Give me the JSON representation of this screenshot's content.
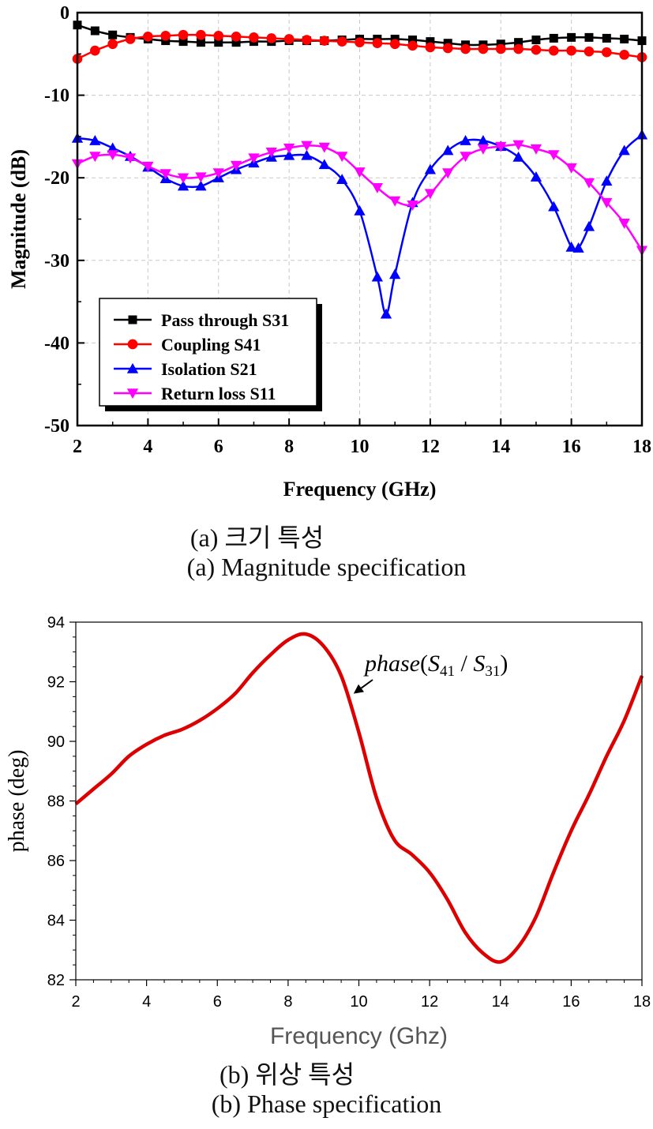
{
  "chart_data": [
    {
      "type": "line",
      "xlabel": "Frequency (GHz)",
      "ylabel": "Magnitude (dB)",
      "xlim": [
        2,
        18
      ],
      "ylim": [
        -50,
        0
      ],
      "xticks": [
        2,
        4,
        6,
        8,
        10,
        12,
        14,
        16,
        18
      ],
      "yticks": [
        0,
        -10,
        -20,
        -30,
        -40,
        -50
      ],
      "grid": true,
      "legend_position": "bottom-left",
      "series": [
        {
          "name": "Pass through S31",
          "color": "#000000",
          "marker": "square",
          "x": [
            2,
            2.5,
            3,
            3.5,
            4,
            4.5,
            5,
            5.5,
            6,
            6.5,
            7,
            7.5,
            8,
            8.5,
            9,
            9.5,
            10,
            10.5,
            11,
            11.5,
            12,
            12.5,
            13,
            13.5,
            14,
            14.5,
            15,
            15.5,
            16,
            16.5,
            17,
            17.5,
            18
          ],
          "y": [
            -1.5,
            -2.2,
            -2.7,
            -3.0,
            -3.2,
            -3.4,
            -3.5,
            -3.6,
            -3.6,
            -3.6,
            -3.5,
            -3.5,
            -3.4,
            -3.4,
            -3.4,
            -3.3,
            -3.2,
            -3.2,
            -3.2,
            -3.3,
            -3.5,
            -3.7,
            -3.9,
            -3.9,
            -3.8,
            -3.6,
            -3.3,
            -3.1,
            -3.0,
            -3.0,
            -3.1,
            -3.2,
            -3.4
          ]
        },
        {
          "name": "Coupling S41",
          "color": "#ff0000",
          "marker": "circle",
          "x": [
            2,
            2.5,
            3,
            3.5,
            4,
            4.5,
            5,
            5.5,
            6,
            6.5,
            7,
            7.5,
            8,
            8.5,
            9,
            9.5,
            10,
            10.5,
            11,
            11.5,
            12,
            12.5,
            13,
            13.5,
            14,
            14.5,
            15,
            15.5,
            16,
            16.5,
            17,
            17.5,
            18
          ],
          "y": [
            -5.6,
            -4.6,
            -3.8,
            -3.2,
            -2.9,
            -2.8,
            -2.7,
            -2.7,
            -2.8,
            -2.9,
            -3.0,
            -3.1,
            -3.2,
            -3.3,
            -3.4,
            -3.5,
            -3.6,
            -3.7,
            -3.8,
            -4.0,
            -4.2,
            -4.3,
            -4.4,
            -4.4,
            -4.4,
            -4.4,
            -4.5,
            -4.6,
            -4.6,
            -4.7,
            -4.8,
            -5.1,
            -5.4
          ]
        },
        {
          "name": "Isolation S21",
          "color": "#0000ff",
          "marker": "triangle-up",
          "x": [
            2,
            2.5,
            3,
            3.5,
            4,
            4.5,
            5,
            5.5,
            6,
            6.5,
            7,
            7.5,
            8,
            8.5,
            9,
            9.5,
            10,
            10.5,
            10.75,
            11,
            11.5,
            12,
            12.5,
            13,
            13.5,
            14,
            14.5,
            15,
            15.5,
            16,
            16.2,
            16.5,
            17,
            17.5,
            18
          ],
          "y": [
            -15.2,
            -15.5,
            -16.4,
            -17.4,
            -18.7,
            -20.1,
            -21.0,
            -21.0,
            -20.0,
            -19.0,
            -18.2,
            -17.5,
            -17.3,
            -17.3,
            -18.4,
            -20.2,
            -24.0,
            -32.0,
            -36.5,
            -31.7,
            -23.0,
            -19.0,
            -16.7,
            -15.5,
            -15.5,
            -16.2,
            -17.5,
            -19.9,
            -23.5,
            -28.4,
            -28.5,
            -25.9,
            -20.4,
            -16.7,
            -14.8
          ]
        },
        {
          "name": "Return loss S11",
          "color": "#ff00ff",
          "marker": "triangle-down",
          "x": [
            2,
            2.5,
            3,
            3.5,
            4,
            4.5,
            5,
            5.5,
            6,
            6.5,
            7,
            7.5,
            8,
            8.5,
            9,
            9.5,
            10,
            10.5,
            11,
            11.5,
            12,
            12.5,
            13,
            13.5,
            14,
            14.5,
            15,
            15.5,
            16,
            16.5,
            17,
            17.5,
            18
          ],
          "y": [
            -18.3,
            -17.4,
            -17.2,
            -17.6,
            -18.6,
            -19.5,
            -20.0,
            -19.9,
            -19.4,
            -18.5,
            -17.6,
            -16.9,
            -16.4,
            -16.1,
            -16.3,
            -17.4,
            -19.3,
            -21.2,
            -22.8,
            -23.3,
            -21.9,
            -19.4,
            -17.4,
            -16.5,
            -16.2,
            -16.0,
            -16.5,
            -17.2,
            -18.8,
            -20.6,
            -23.0,
            -25.5,
            -28.8
          ]
        }
      ],
      "caption_ko": "(a)  크기  특성",
      "caption_en": "(a)  Magnitude  specification"
    },
    {
      "type": "line",
      "xlabel": "Frequency (Ghz)",
      "ylabel": "phase (deg)",
      "xlim": [
        2,
        18
      ],
      "ylim": [
        82,
        94
      ],
      "xticks": [
        2,
        4,
        6,
        8,
        10,
        12,
        14,
        16,
        18
      ],
      "yticks": [
        82,
        84,
        86,
        88,
        90,
        92,
        94
      ],
      "grid": false,
      "series": [
        {
          "color": "#dd0000",
          "x": [
            2,
            2.5,
            3,
            3.5,
            4,
            4.5,
            5,
            5.5,
            6,
            6.5,
            7,
            7.5,
            8,
            8.5,
            9,
            9.5,
            10,
            10.5,
            11,
            11.5,
            12,
            12.5,
            13,
            13.5,
            14,
            14.5,
            15,
            15.5,
            16,
            16.5,
            17,
            17.5,
            18
          ],
          "y": [
            87.9,
            88.4,
            88.9,
            89.5,
            89.9,
            90.2,
            90.4,
            90.7,
            91.1,
            91.6,
            92.3,
            92.9,
            93.4,
            93.6,
            93.2,
            92.2,
            90.3,
            88.1,
            86.7,
            86.2,
            85.6,
            84.7,
            83.6,
            82.9,
            82.6,
            83.1,
            84.1,
            85.6,
            87.0,
            88.2,
            89.5,
            90.7,
            92.2
          ]
        }
      ],
      "annotation": {
        "fn": "phase",
        "num": "S",
        "num_sub": "41",
        "den": "S",
        "den_sub": "31",
        "x": 9.85,
        "y": 91.6
      },
      "caption_ko": "(b)  위상  특성",
      "caption_en": "(b)  Phase  specification"
    }
  ]
}
